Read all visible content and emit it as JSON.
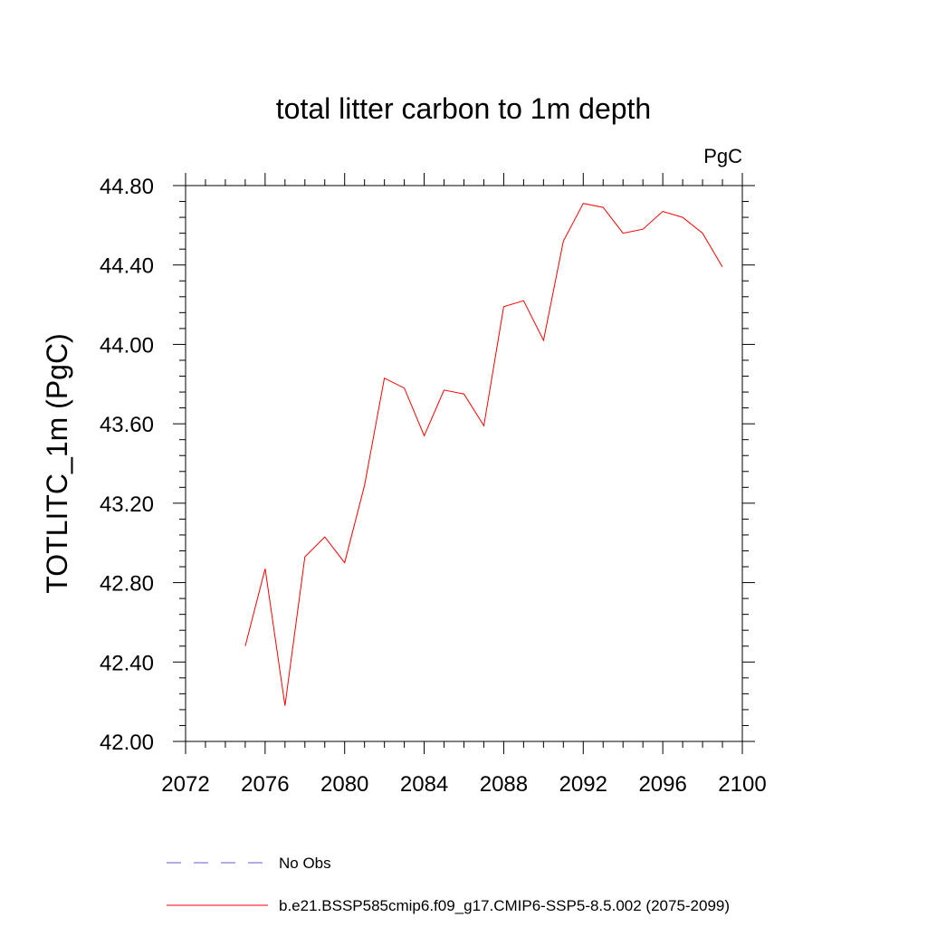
{
  "chart_data": {
    "type": "line",
    "title": "total litter carbon to 1m depth",
    "units_label": "PgC",
    "ylabel": "TOTLITC_1m  (PgC)",
    "xlabel": "",
    "xlim": [
      2072,
      2100
    ],
    "ylim": [
      42.0,
      44.8
    ],
    "x_ticks": [
      "2072",
      "2076",
      "2080",
      "2084",
      "2088",
      "2092",
      "2096",
      "2100"
    ],
    "y_ticks": [
      "42.00",
      "42.40",
      "42.80",
      "43.20",
      "43.60",
      "44.00",
      "44.40",
      "44.80"
    ],
    "grid": false,
    "legend_position": "bottom",
    "legend": [
      {
        "name": "No Obs",
        "color": "#6a5acd",
        "style": "dashed"
      },
      {
        "name": "b.e21.BSSP585cmip6.f09_g17.CMIP6-SSP5-8.5.002 (2075-2099)",
        "color": "#ff0000",
        "style": "solid"
      }
    ],
    "series": [
      {
        "name": "b.e21.BSSP585cmip6.f09_g17.CMIP6-SSP5-8.5.002 (2075-2099)",
        "color": "#ff0000",
        "x": [
          2075,
          2076,
          2077,
          2078,
          2079,
          2080,
          2081,
          2082,
          2083,
          2084,
          2085,
          2086,
          2087,
          2088,
          2089,
          2090,
          2091,
          2092,
          2093,
          2094,
          2095,
          2096,
          2097,
          2098,
          2099
        ],
        "values": [
          42.48,
          42.87,
          42.18,
          42.93,
          43.03,
          42.9,
          43.29,
          43.83,
          43.78,
          43.54,
          43.77,
          43.75,
          43.59,
          44.19,
          44.22,
          44.02,
          44.52,
          44.71,
          44.69,
          44.56,
          44.58,
          44.67,
          44.64,
          44.56,
          44.39
        ]
      }
    ]
  }
}
